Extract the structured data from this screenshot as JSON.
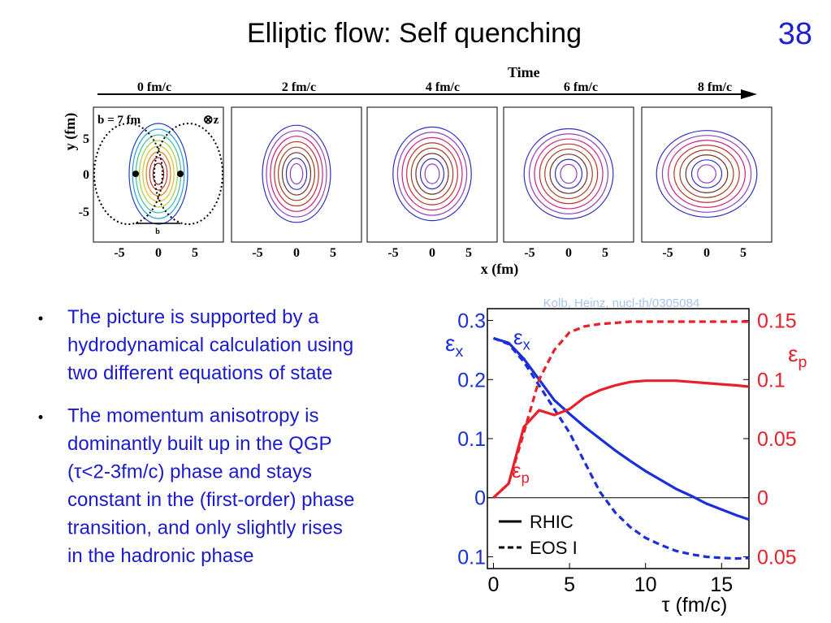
{
  "header": {
    "title": "Elliptic flow: Self quenching",
    "page": "38"
  },
  "figure_top": {
    "arrow_label": "Time",
    "times": [
      "0 fm/c",
      "2 fm/c",
      "4 fm/c",
      "6 fm/c",
      "8 fm/c"
    ],
    "impact": "b = 7 fm",
    "z_label": "⊗z",
    "b_label": "b",
    "y_label": "y (fm)",
    "x_label": "x (fm)",
    "x_ticks": [
      "-5",
      "0",
      "5"
    ],
    "y_ticks": [
      "5",
      "0",
      "-5"
    ]
  },
  "bullets": [
    [
      "The picture is supported by a",
      "hydrodynamical calculation using",
      "two different equations of state"
    ],
    [
      "The momentum anisotropy is",
      "dominantly built up in the QGP",
      "(τ<2-3fm/c) phase and stays",
      "constant in the (first-order) phase",
      "transition, and only slightly rises",
      "in the hadronic phase"
    ]
  ],
  "citation": "Kolb, Heinz, nucl-th/0305084",
  "chart_data": {
    "type": "line",
    "x_label": "τ (fm/c)",
    "y_label": {
      "text": "ε",
      "sub": "x"
    },
    "y2_label": {
      "text": "ε",
      "sub": "p"
    },
    "annotations": [
      {
        "text": "ε",
        "sub": "x",
        "color": "#1a2fd8"
      },
      {
        "text": "ε",
        "sub": "p",
        "color": "#e8202a"
      }
    ],
    "x": [
      0,
      1,
      2,
      3,
      4,
      5,
      6,
      7,
      8,
      9,
      10,
      11,
      12,
      13,
      14,
      15,
      16,
      16.8
    ],
    "xlim": [
      -0.4,
      16.8
    ],
    "xticks": [
      0,
      5,
      10,
      15
    ],
    "ylim": [
      -0.12,
      0.32
    ],
    "yticks": [
      {
        "value": -0.1,
        "label": "0.1"
      },
      0,
      0.1,
      0.2,
      0.3
    ],
    "y2lim": [
      -0.06,
      0.16
    ],
    "y2ticks": [
      {
        "value": -0.05,
        "label": "0.05"
      },
      0,
      0.05,
      0.1,
      0.15
    ],
    "y_color": "#1a2fd8",
    "y2_color": "#e8202a",
    "legend": [
      {
        "label": "RHIC",
        "style": "solid"
      },
      {
        "label": "EOS I",
        "style": "dashed"
      }
    ],
    "series": [
      {
        "style": "solid",
        "color": "#1a2fd8",
        "axis": "y",
        "values": [
          0.27,
          0.262,
          0.235,
          0.2,
          0.165,
          0.142,
          0.12,
          0.1,
          0.08,
          0.062,
          0.045,
          0.03,
          0.015,
          0.003,
          -0.01,
          -0.02,
          -0.03,
          -0.037
        ]
      },
      {
        "style": "dashed",
        "color": "#1a2fd8",
        "axis": "y",
        "values": [
          0.27,
          0.26,
          0.23,
          0.19,
          0.15,
          0.11,
          0.06,
          0.01,
          -0.025,
          -0.05,
          -0.068,
          -0.08,
          -0.09,
          -0.096,
          -0.1,
          -0.102,
          -0.103,
          -0.102
        ]
      },
      {
        "style": "solid",
        "color": "#e8202a",
        "axis": "y2",
        "values": [
          0,
          0.012,
          0.06,
          0.074,
          0.07,
          0.075,
          0.085,
          0.091,
          0.095,
          0.098,
          0.099,
          0.099,
          0.099,
          0.098,
          0.097,
          0.096,
          0.095,
          0.094
        ]
      },
      {
        "style": "dashed",
        "color": "#e8202a",
        "axis": "y2",
        "values": [
          0,
          0.012,
          0.055,
          0.1,
          0.125,
          0.14,
          0.145,
          0.147,
          0.148,
          0.149,
          0.149,
          0.149,
          0.149,
          0.149,
          0.149,
          0.149,
          0.149,
          0.149
        ]
      }
    ]
  }
}
